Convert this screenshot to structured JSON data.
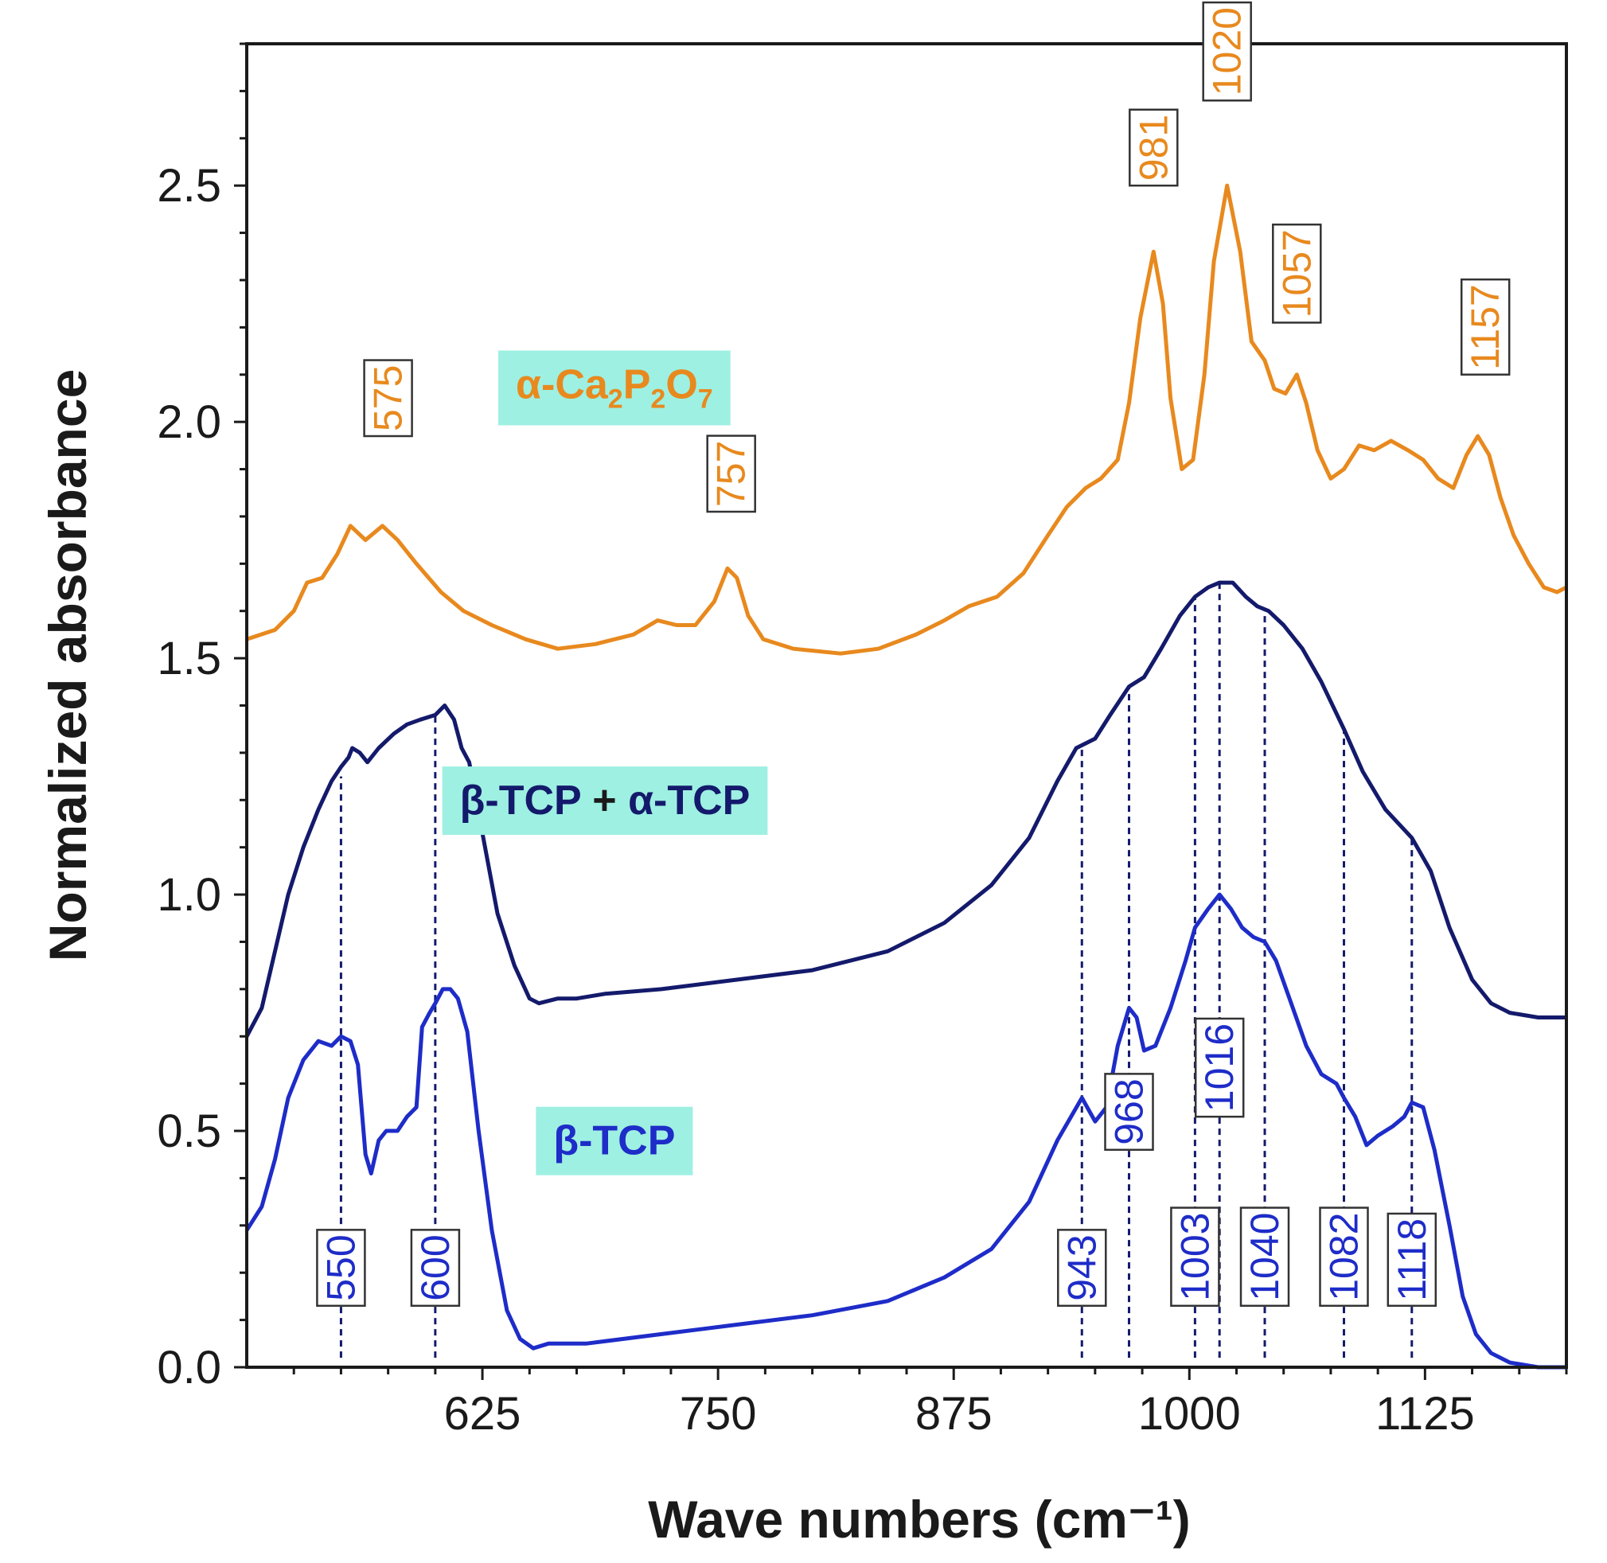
{
  "chart_data": {
    "type": "line",
    "title": "",
    "xlabel": "Wave numbers (cm⁻¹)",
    "ylabel": "Normalized absorbance",
    "xlim": [
      500,
      1200
    ],
    "ylim": [
      0,
      2.8
    ],
    "x_ticks": [
      625,
      750,
      875,
      1000,
      1125
    ],
    "y_ticks": [
      0.0,
      0.5,
      1.0,
      1.5,
      2.0,
      2.5
    ],
    "x_tick_labels": [
      "625",
      "750",
      "875",
      "1000",
      "1125"
    ],
    "y_tick_labels": [
      "0.0",
      "0.5",
      "1.0",
      "1.5",
      "2.0",
      "2.5"
    ],
    "grid": false,
    "legend": "none",
    "series": [
      {
        "name": "α-Ca₂P₂O₇",
        "color": "#E8891E",
        "label_box_color": "#9EF0E2",
        "points": [
          [
            500,
            1.54
          ],
          [
            515,
            1.56
          ],
          [
            525,
            1.6
          ],
          [
            532,
            1.66
          ],
          [
            540,
            1.67
          ],
          [
            548,
            1.72
          ],
          [
            555,
            1.78
          ],
          [
            563,
            1.75
          ],
          [
            572,
            1.78
          ],
          [
            580,
            1.75
          ],
          [
            590,
            1.7
          ],
          [
            603,
            1.64
          ],
          [
            615,
            1.6
          ],
          [
            630,
            1.57
          ],
          [
            648,
            1.54
          ],
          [
            665,
            1.52
          ],
          [
            685,
            1.53
          ],
          [
            705,
            1.55
          ],
          [
            718,
            1.58
          ],
          [
            728,
            1.57
          ],
          [
            738,
            1.57
          ],
          [
            748,
            1.62
          ],
          [
            755,
            1.69
          ],
          [
            760,
            1.67
          ],
          [
            766,
            1.59
          ],
          [
            774,
            1.54
          ],
          [
            790,
            1.52
          ],
          [
            815,
            1.51
          ],
          [
            835,
            1.52
          ],
          [
            855,
            1.55
          ],
          [
            870,
            1.58
          ],
          [
            883,
            1.61
          ],
          [
            898,
            1.63
          ],
          [
            912,
            1.68
          ],
          [
            925,
            1.76
          ],
          [
            935,
            1.82
          ],
          [
            945,
            1.86
          ],
          [
            953,
            1.88
          ],
          [
            962,
            1.92
          ],
          [
            968,
            2.04
          ],
          [
            974,
            2.22
          ],
          [
            981,
            2.36
          ],
          [
            986,
            2.25
          ],
          [
            990,
            2.05
          ],
          [
            996,
            1.9
          ],
          [
            1002,
            1.92
          ],
          [
            1008,
            2.1
          ],
          [
            1013,
            2.34
          ],
          [
            1020,
            2.5
          ],
          [
            1027,
            2.36
          ],
          [
            1033,
            2.17
          ],
          [
            1040,
            2.13
          ],
          [
            1045,
            2.07
          ],
          [
            1051,
            2.06
          ],
          [
            1057,
            2.1
          ],
          [
            1062,
            2.04
          ],
          [
            1068,
            1.94
          ],
          [
            1075,
            1.88
          ],
          [
            1082,
            1.9
          ],
          [
            1090,
            1.95
          ],
          [
            1098,
            1.94
          ],
          [
            1107,
            1.96
          ],
          [
            1116,
            1.94
          ],
          [
            1124,
            1.92
          ],
          [
            1132,
            1.88
          ],
          [
            1140,
            1.86
          ],
          [
            1147,
            1.93
          ],
          [
            1153,
            1.97
          ],
          [
            1159,
            1.93
          ],
          [
            1165,
            1.84
          ],
          [
            1172,
            1.76
          ],
          [
            1180,
            1.7
          ],
          [
            1188,
            1.65
          ],
          [
            1195,
            1.64
          ],
          [
            1200,
            1.65
          ]
        ]
      },
      {
        "name": "β-TCP + α-TCP",
        "color": "#141A6B",
        "label_box_color": "#9EF0E2",
        "points": [
          [
            500,
            0.7
          ],
          [
            508,
            0.76
          ],
          [
            515,
            0.88
          ],
          [
            522,
            1.0
          ],
          [
            530,
            1.1
          ],
          [
            538,
            1.18
          ],
          [
            545,
            1.24
          ],
          [
            550,
            1.27
          ],
          [
            554,
            1.29
          ],
          [
            556,
            1.31
          ],
          [
            560,
            1.3
          ],
          [
            564,
            1.28
          ],
          [
            570,
            1.31
          ],
          [
            578,
            1.34
          ],
          [
            585,
            1.36
          ],
          [
            592,
            1.37
          ],
          [
            600,
            1.38
          ],
          [
            605,
            1.4
          ],
          [
            610,
            1.37
          ],
          [
            614,
            1.31
          ],
          [
            618,
            1.28
          ],
          [
            625,
            1.13
          ],
          [
            633,
            0.96
          ],
          [
            642,
            0.85
          ],
          [
            650,
            0.78
          ],
          [
            655,
            0.77
          ],
          [
            665,
            0.78
          ],
          [
            675,
            0.78
          ],
          [
            690,
            0.79
          ],
          [
            720,
            0.8
          ],
          [
            760,
            0.82
          ],
          [
            800,
            0.84
          ],
          [
            840,
            0.88
          ],
          [
            870,
            0.94
          ],
          [
            895,
            1.02
          ],
          [
            915,
            1.12
          ],
          [
            930,
            1.24
          ],
          [
            940,
            1.31
          ],
          [
            950,
            1.33
          ],
          [
            958,
            1.38
          ],
          [
            968,
            1.44
          ],
          [
            976,
            1.46
          ],
          [
            985,
            1.52
          ],
          [
            995,
            1.59
          ],
          [
            1003,
            1.63
          ],
          [
            1010,
            1.65
          ],
          [
            1016,
            1.66
          ],
          [
            1023,
            1.66
          ],
          [
            1030,
            1.63
          ],
          [
            1036,
            1.61
          ],
          [
            1042,
            1.6
          ],
          [
            1050,
            1.57
          ],
          [
            1060,
            1.52
          ],
          [
            1070,
            1.45
          ],
          [
            1082,
            1.35
          ],
          [
            1092,
            1.26
          ],
          [
            1104,
            1.18
          ],
          [
            1118,
            1.12
          ],
          [
            1128,
            1.05
          ],
          [
            1138,
            0.93
          ],
          [
            1150,
            0.82
          ],
          [
            1160,
            0.77
          ],
          [
            1170,
            0.75
          ],
          [
            1185,
            0.74
          ],
          [
            1200,
            0.74
          ]
        ]
      },
      {
        "name": "β-TCP",
        "color": "#1E2CC8",
        "label_box_color": "#9EF0E2",
        "points": [
          [
            500,
            0.29
          ],
          [
            508,
            0.34
          ],
          [
            515,
            0.44
          ],
          [
            522,
            0.57
          ],
          [
            530,
            0.65
          ],
          [
            538,
            0.69
          ],
          [
            545,
            0.68
          ],
          [
            550,
            0.7
          ],
          [
            555,
            0.69
          ],
          [
            559,
            0.64
          ],
          [
            563,
            0.45
          ],
          [
            566,
            0.41
          ],
          [
            570,
            0.48
          ],
          [
            574,
            0.5
          ],
          [
            580,
            0.5
          ],
          [
            585,
            0.53
          ],
          [
            590,
            0.55
          ],
          [
            593,
            0.72
          ],
          [
            597,
            0.75
          ],
          [
            600,
            0.77
          ],
          [
            604,
            0.8
          ],
          [
            608,
            0.8
          ],
          [
            612,
            0.78
          ],
          [
            617,
            0.71
          ],
          [
            623,
            0.5
          ],
          [
            630,
            0.29
          ],
          [
            638,
            0.12
          ],
          [
            645,
            0.06
          ],
          [
            652,
            0.04
          ],
          [
            660,
            0.05
          ],
          [
            680,
            0.05
          ],
          [
            720,
            0.07
          ],
          [
            760,
            0.09
          ],
          [
            800,
            0.11
          ],
          [
            840,
            0.14
          ],
          [
            870,
            0.19
          ],
          [
            895,
            0.25
          ],
          [
            915,
            0.35
          ],
          [
            930,
            0.48
          ],
          [
            943,
            0.57
          ],
          [
            950,
            0.52
          ],
          [
            956,
            0.55
          ],
          [
            962,
            0.68
          ],
          [
            968,
            0.76
          ],
          [
            972,
            0.74
          ],
          [
            976,
            0.67
          ],
          [
            982,
            0.68
          ],
          [
            990,
            0.76
          ],
          [
            998,
            0.86
          ],
          [
            1003,
            0.93
          ],
          [
            1010,
            0.97
          ],
          [
            1016,
            1.0
          ],
          [
            1022,
            0.97
          ],
          [
            1028,
            0.93
          ],
          [
            1034,
            0.91
          ],
          [
            1040,
            0.9
          ],
          [
            1046,
            0.86
          ],
          [
            1054,
            0.77
          ],
          [
            1062,
            0.68
          ],
          [
            1070,
            0.62
          ],
          [
            1078,
            0.6
          ],
          [
            1082,
            0.57
          ],
          [
            1088,
            0.53
          ],
          [
            1094,
            0.47
          ],
          [
            1100,
            0.49
          ],
          [
            1108,
            0.51
          ],
          [
            1114,
            0.53
          ],
          [
            1118,
            0.56
          ],
          [
            1124,
            0.55
          ],
          [
            1130,
            0.46
          ],
          [
            1138,
            0.3
          ],
          [
            1145,
            0.15
          ],
          [
            1152,
            0.07
          ],
          [
            1160,
            0.03
          ],
          [
            1170,
            0.01
          ],
          [
            1185,
            0.0
          ],
          [
            1200,
            0.0
          ]
        ]
      }
    ],
    "series_labels": [
      {
        "series": 0,
        "text_parts": [
          "α-Ca",
          "2",
          "P",
          "2",
          "O",
          "7"
        ],
        "x": 695,
        "y": 2.05
      },
      {
        "series": 1,
        "text_parts": [
          "β-TCP",
          " + ",
          "α-TCP"
        ],
        "x": 690,
        "y": 1.17
      },
      {
        "series": 2,
        "text_parts": [
          "β-TCP"
        ],
        "x": 695,
        "y": 0.45
      }
    ],
    "peak_annotations": [
      {
        "label": "575",
        "series": 0,
        "x": 575,
        "y": 1.97,
        "color": "#E8891E"
      },
      {
        "label": "757",
        "series": 0,
        "x": 757,
        "y": 1.81,
        "color": "#E8891E"
      },
      {
        "label": "981",
        "series": 0,
        "x": 981,
        "y": 2.5,
        "color": "#E8891E"
      },
      {
        "label": "1020",
        "series": 0,
        "x": 1020,
        "y": 2.68,
        "color": "#E8891E"
      },
      {
        "label": "1057",
        "series": 0,
        "x": 1057,
        "y": 2.21,
        "color": "#E8891E"
      },
      {
        "label": "1157",
        "series": 0,
        "x": 1157,
        "y": 2.1,
        "color": "#E8891E"
      },
      {
        "label": "550",
        "series": 2,
        "x": 550,
        "y": 0.13,
        "color": "#1E2CC8",
        "line_to": 1.25
      },
      {
        "label": "600",
        "series": 2,
        "x": 600,
        "y": 0.13,
        "color": "#1E2CC8",
        "line_to": 1.38
      },
      {
        "label": "943",
        "series": 2,
        "x": 943,
        "y": 0.13,
        "color": "#1E2CC8",
        "line_to": 1.31
      },
      {
        "label": "968",
        "series": 2,
        "x": 968,
        "y": 0.46,
        "color": "#1E2CC8",
        "line_to": 1.44
      },
      {
        "label": "1003",
        "series": 2,
        "x": 1003,
        "y": 0.13,
        "color": "#1E2CC8",
        "line_to": 1.63
      },
      {
        "label": "1016",
        "series": 2,
        "x": 1016,
        "y": 0.53,
        "color": "#1E2CC8",
        "line_to": 1.66
      },
      {
        "label": "1040",
        "series": 2,
        "x": 1040,
        "y": 0.13,
        "color": "#1E2CC8",
        "line_to": 1.6
      },
      {
        "label": "1082",
        "series": 2,
        "x": 1082,
        "y": 0.13,
        "color": "#1E2CC8",
        "line_to": 1.35
      },
      {
        "label": "1118",
        "series": 2,
        "x": 1118,
        "y": 0.13,
        "color": "#1E2CC8",
        "line_to": 1.12
      }
    ]
  }
}
